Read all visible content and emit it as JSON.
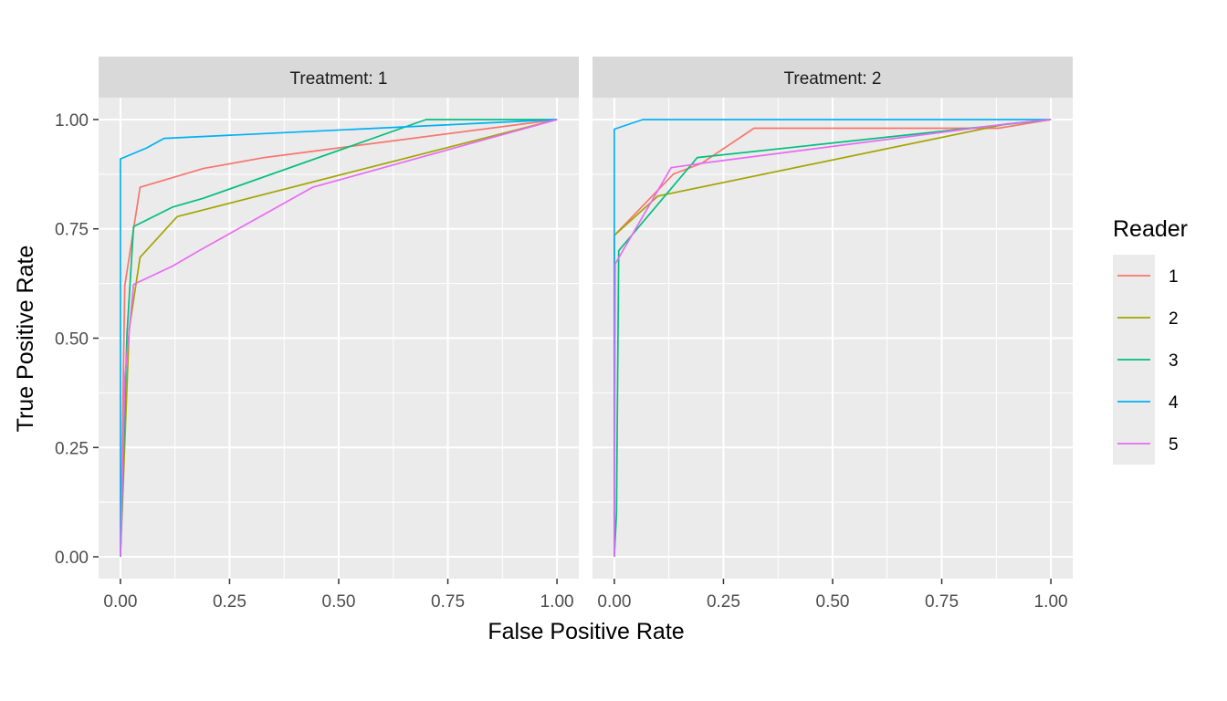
{
  "chart_data": {
    "type": "line",
    "xlabel": "False Positive Rate",
    "ylabel": "True Positive Rate",
    "xlim": [
      -0.05,
      1.05
    ],
    "ylim": [
      -0.05,
      1.05
    ],
    "x_ticks": [
      0,
      0.25,
      0.5,
      0.75,
      1
    ],
    "x_tick_labels": [
      "0.00",
      "0.25",
      "0.50",
      "0.75",
      "1.00"
    ],
    "y_ticks": [
      0,
      0.25,
      0.5,
      0.75,
      1
    ],
    "y_tick_labels": [
      "0.00",
      "0.25",
      "0.50",
      "0.75",
      "1.00"
    ],
    "grid": true,
    "legend": {
      "title": "Reader",
      "position": "right",
      "entries": [
        {
          "label": "1",
          "color": "#F8766D"
        },
        {
          "label": "2",
          "color": "#A3A500"
        },
        {
          "label": "3",
          "color": "#00BF7D"
        },
        {
          "label": "4",
          "color": "#00B0F6"
        },
        {
          "label": "5",
          "color": "#E76BF3"
        }
      ]
    },
    "panels": [
      {
        "strip": "Treatment: 1",
        "series": [
          {
            "name": "1",
            "color": "#F8766D",
            "points": [
              [
                0,
                0
              ],
              [
                0.01,
                0.62
              ],
              [
                0.045,
                0.845
              ],
              [
                0.19,
                0.888
              ],
              [
                0.33,
                0.913
              ],
              [
                1,
                1
              ]
            ]
          },
          {
            "name": "2",
            "color": "#A3A500",
            "points": [
              [
                0,
                0
              ],
              [
                0.02,
                0.52
              ],
              [
                0.045,
                0.685
              ],
              [
                0.13,
                0.778
              ],
              [
                1,
                1
              ]
            ]
          },
          {
            "name": "3",
            "color": "#00BF7D",
            "points": [
              [
                0,
                0
              ],
              [
                0.015,
                0.51
              ],
              [
                0.03,
                0.755
              ],
              [
                0.12,
                0.8
              ],
              [
                0.19,
                0.82
              ],
              [
                0.7,
                1
              ],
              [
                1,
                1
              ]
            ]
          },
          {
            "name": "4",
            "color": "#00B0F6",
            "points": [
              [
                0,
                0
              ],
              [
                0,
                0.91
              ],
              [
                0.06,
                0.935
              ],
              [
                0.1,
                0.957
              ],
              [
                1,
                1
              ]
            ]
          },
          {
            "name": "5",
            "color": "#E76BF3",
            "points": [
              [
                0,
                0
              ],
              [
                0.01,
                0.41
              ],
              [
                0.03,
                0.623
              ],
              [
                0.12,
                0.665
              ],
              [
                0.18,
                0.7
              ],
              [
                0.44,
                0.845
              ],
              [
                1,
                1
              ]
            ]
          }
        ]
      },
      {
        "strip": "Treatment: 2",
        "series": [
          {
            "name": "1",
            "color": "#F8766D",
            "points": [
              [
                0,
                0
              ],
              [
                0,
                0.735
              ],
              [
                0.135,
                0.875
              ],
              [
                0.2,
                0.9
              ],
              [
                0.32,
                0.98
              ],
              [
                0.88,
                0.98
              ],
              [
                1,
                1
              ]
            ]
          },
          {
            "name": "2",
            "color": "#A3A500",
            "points": [
              [
                0,
                0
              ],
              [
                0,
                0.735
              ],
              [
                0.1,
                0.825
              ],
              [
                0.9,
                0.99
              ],
              [
                1,
                1
              ]
            ]
          },
          {
            "name": "3",
            "color": "#00BF7D",
            "points": [
              [
                0,
                0
              ],
              [
                0.005,
                0.1
              ],
              [
                0.01,
                0.7
              ],
              [
                0.19,
                0.913
              ],
              [
                1,
                1
              ]
            ]
          },
          {
            "name": "4",
            "color": "#00B0F6",
            "points": [
              [
                0,
                0
              ],
              [
                0,
                0.978
              ],
              [
                0.065,
                1
              ],
              [
                1,
                1
              ]
            ]
          },
          {
            "name": "5",
            "color": "#E76BF3",
            "points": [
              [
                0,
                0
              ],
              [
                0.002,
                0.67
              ],
              [
                0.13,
                0.89
              ],
              [
                0.2,
                0.9
              ],
              [
                0.9,
                0.99
              ],
              [
                1,
                1
              ]
            ]
          }
        ]
      }
    ]
  }
}
